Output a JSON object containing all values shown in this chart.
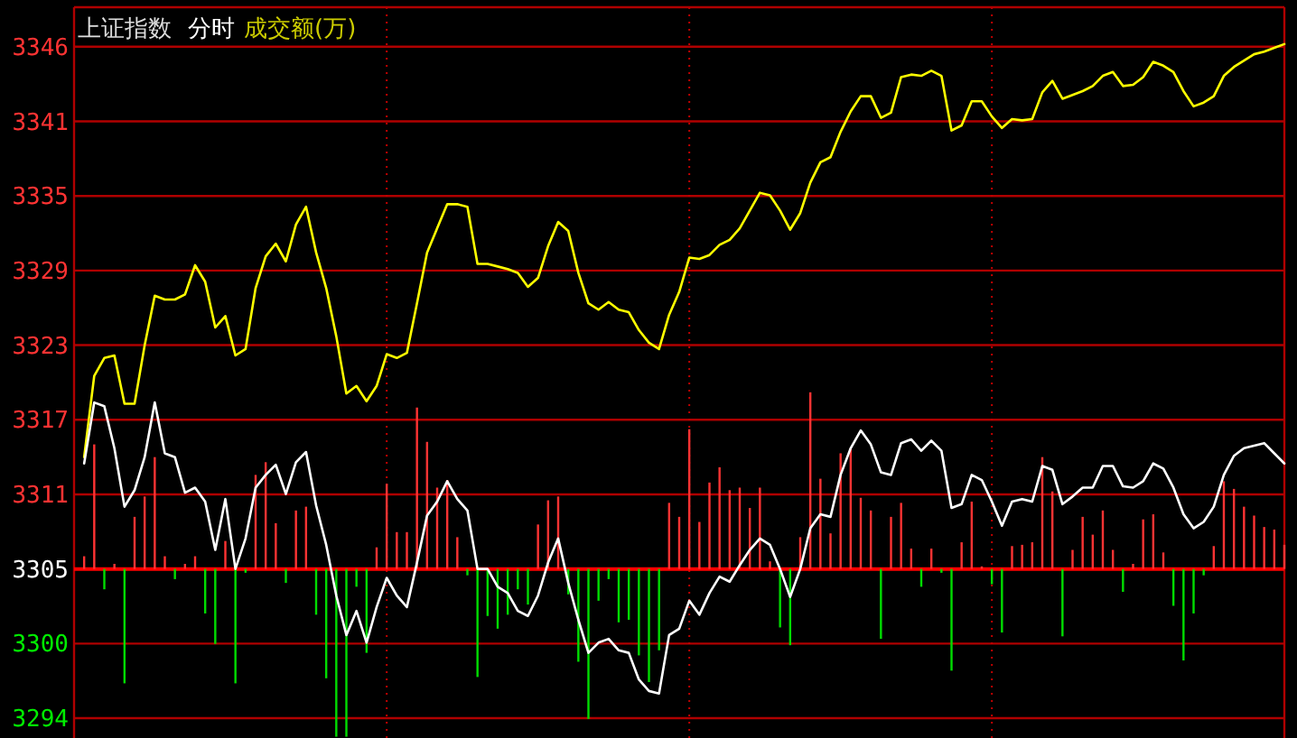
{
  "chart_data": {
    "type": "line",
    "title": "上证指数",
    "subtitle": "分时",
    "annotations": [
      "成交额(万)"
    ],
    "categories": [
      null,
      null,
      null,
      null,
      null,
      null,
      null,
      null,
      null,
      null,
      null,
      null,
      null,
      null,
      null,
      null,
      null,
      null,
      null,
      null,
      null,
      null,
      null,
      null,
      null,
      null,
      null,
      null,
      null,
      null,
      null,
      null,
      null,
      null,
      null,
      null,
      null,
      null,
      null,
      null,
      null,
      null,
      null,
      null,
      null,
      null,
      null,
      null,
      null,
      null,
      null,
      null,
      null,
      null,
      null,
      null,
      null,
      null,
      null,
      null,
      null,
      null,
      null,
      null,
      null,
      null,
      null,
      null,
      null,
      null,
      null,
      null,
      null,
      null,
      null,
      null,
      null,
      null,
      null,
      null,
      null,
      null,
      null,
      null,
      null,
      null,
      null,
      null,
      null,
      null,
      null,
      null,
      null,
      null,
      null,
      null,
      null,
      null,
      null,
      null,
      null,
      null,
      null,
      null,
      null,
      null,
      null,
      null,
      null,
      null,
      null,
      null,
      null,
      null,
      null,
      null,
      null,
      null,
      null,
      null
    ],
    "series": [
      {
        "type": "bar",
        "values": [
          1.0,
          9.8,
          -1.6,
          0.4,
          -9.0,
          4.1,
          5.7,
          8.8,
          1.0,
          -0.8,
          0.4,
          1.0,
          -3.5,
          -5.9,
          2.2,
          -9.0,
          -0.3,
          7.4,
          8.4,
          3.6,
          -1.1,
          4.6,
          4.9,
          -3.6,
          -8.6,
          -13.2,
          -13.2,
          -1.4,
          -6.6,
          1.7,
          6.7,
          2.9,
          2.9,
          12.7,
          10.0,
          6.4,
          7.0,
          2.5,
          -0.5,
          -8.5,
          -3.7,
          -4.7,
          -3.6,
          -1.6,
          -2.8,
          3.5,
          5.4,
          5.7,
          -2.0,
          -7.3,
          -11.8,
          -2.5,
          -0.8,
          -4.2,
          -4.0,
          -6.8,
          -8.9,
          -6.4,
          5.2,
          4.1,
          11.0,
          3.7,
          6.8,
          8.0,
          6.2,
          6.4,
          4.8,
          6.4,
          0.6,
          -4.6,
          -6.0,
          2.5,
          13.9,
          7.1,
          2.8,
          9.1,
          9.5,
          5.6,
          4.6,
          -5.5,
          4.1,
          5.2,
          1.6,
          -1.4,
          1.6,
          -0.3,
          -8.0,
          2.1,
          5.3,
          0.2,
          -1.2,
          -5.0,
          1.8,
          1.9,
          2.1,
          8.8,
          6.1,
          -5.3,
          1.5,
          4.1,
          2.7,
          4.6,
          1.5,
          -1.8,
          0.4,
          3.9,
          4.3,
          1.3,
          -2.9,
          -7.2,
          -3.5,
          -0.5,
          1.8,
          6.9,
          6.3,
          4.9,
          4.2,
          3.3,
          3.1,
          1.9
        ],
        "base": [
          3305.4,
          3305.4,
          3305.4,
          3305.4,
          3305.4,
          3305.4,
          3305.4,
          3305.4,
          3305.4,
          3305.4,
          3305.4,
          3305.4,
          3305.4,
          3305.4,
          3305.4,
          3305.4,
          3305.4,
          3305.4,
          3305.4,
          3305.4,
          3305.4,
          3305.4,
          3305.4,
          3305.4,
          3305.4,
          3305.4,
          3305.4,
          3305.4,
          3305.4,
          3305.4,
          3305.4,
          3305.4,
          3305.4,
          3305.4,
          3305.4,
          3305.4,
          3305.4,
          3305.4,
          3305.4,
          3305.4,
          3305.4,
          3305.4,
          3305.4,
          3305.4,
          3305.4,
          3305.4,
          3305.4,
          3305.4,
          3305.4,
          3305.4,
          3305.4,
          3305.4,
          3305.4,
          3305.4,
          3305.4,
          3305.4,
          3305.4,
          3305.4,
          3305.4,
          3305.4,
          3305.4,
          3305.4,
          3305.4,
          3305.4,
          3305.4,
          3305.4,
          3305.4,
          3305.4,
          3305.4,
          3305.4,
          3305.4,
          3305.4,
          3305.4,
          3305.4,
          3305.4,
          3305.4,
          3305.4,
          3305.4,
          3305.4,
          3305.4,
          3305.4,
          3305.4,
          3305.4,
          3305.4,
          3305.4,
          3305.4,
          3305.4,
          3305.4,
          3305.4,
          3305.4,
          3305.4,
          3305.4,
          3305.4,
          3305.4,
          3305.4,
          3305.4,
          3305.4,
          3305.4,
          3305.4,
          3305.4,
          3305.4,
          3305.4,
          3305.4,
          3305.4,
          3305.4,
          3305.4,
          3305.4,
          3305.4,
          3305.4,
          3305.4,
          3305.4,
          3305.4,
          3305.4,
          3305.4,
          3305.4,
          3305.4,
          3305.4,
          3305.4,
          3305.4,
          3305.4
        ],
        "colors": [
          "#ff3333",
          "#ff3333",
          "#00dd00",
          "#ff3333",
          "#00dd00",
          "#ff3333",
          "#ff3333",
          "#ff3333",
          "#ff3333",
          "#00dd00",
          "#ff3333",
          "#ff3333",
          "#00dd00",
          "#00dd00",
          "#ff3333",
          "#00dd00",
          "#00dd00",
          "#ff3333",
          "#ff3333",
          "#ff3333",
          "#00dd00",
          "#ff3333",
          "#ff3333",
          "#00dd00",
          "#00dd00",
          "#00dd00",
          "#00dd00",
          "#00dd00",
          "#00dd00",
          "#ff3333",
          "#ff3333",
          "#ff3333",
          "#ff3333",
          "#ff3333",
          "#ff3333",
          "#ff3333",
          "#ff3333",
          "#ff3333",
          "#00dd00",
          "#00dd00",
          "#00dd00",
          "#00dd00",
          "#00dd00",
          "#00dd00",
          "#00dd00",
          "#ff3333",
          "#ff3333",
          "#ff3333",
          "#00dd00",
          "#00dd00",
          "#00dd00",
          "#00dd00",
          "#00dd00",
          "#00dd00",
          "#00dd00",
          "#00dd00",
          "#00dd00",
          "#00dd00",
          "#ff3333",
          "#ff3333",
          "#ff3333",
          "#ff3333",
          "#ff3333",
          "#ff3333",
          "#ff3333",
          "#ff3333",
          "#ff3333",
          "#ff3333",
          "#ff3333",
          "#00dd00",
          "#00dd00",
          "#ff3333",
          "#ff3333",
          "#ff3333",
          "#ff3333",
          "#ff3333",
          "#ff3333",
          "#ff3333",
          "#ff3333",
          "#00dd00",
          "#ff3333",
          "#ff3333",
          "#ff3333",
          "#00dd00",
          "#ff3333",
          "#00dd00",
          "#00dd00",
          "#ff3333",
          "#ff3333",
          "#ff3333",
          "#00dd00",
          "#00dd00",
          "#ff3333",
          "#ff3333",
          "#ff3333",
          "#ff3333",
          "#ff3333",
          "#00dd00",
          "#ff3333",
          "#ff3333",
          "#ff3333",
          "#ff3333",
          "#ff3333",
          "#00dd00",
          "#ff3333",
          "#ff3333",
          "#ff3333",
          "#ff3333",
          "#00dd00",
          "#00dd00",
          "#00dd00",
          "#00dd00",
          "#ff3333",
          "#ff3333",
          "#ff3333",
          "#ff3333",
          "#ff3333",
          "#ff3333",
          "#ff3333",
          "#ff3333"
        ]
      },
      {
        "color": "#ffff00",
        "values": [
          3314.2,
          3320.6,
          3322.0,
          3322.2,
          3318.4,
          3318.4,
          3323.0,
          3326.9,
          3326.6,
          3326.6,
          3327.0,
          3329.3,
          3328.0,
          3324.4,
          3325.3,
          3322.2,
          3322.7,
          3327.5,
          3330.0,
          3331.0,
          3329.6,
          3332.5,
          3333.9,
          3330.3,
          3327.5,
          3323.7,
          3319.2,
          3319.8,
          3318.6,
          3319.8,
          3322.3,
          3322.0,
          3322.4,
          3326.3,
          3330.3,
          3332.2,
          3334.1,
          3334.1,
          3333.9,
          3329.4,
          3329.4,
          3329.2,
          3329.0,
          3328.7,
          3327.6,
          3328.3,
          3330.8,
          3332.7,
          3332.0,
          3328.7,
          3326.3,
          3325.8,
          3326.4,
          3325.8,
          3325.6,
          3324.2,
          3323.2,
          3322.7,
          3325.4,
          3327.2,
          3329.9,
          3329.8,
          3330.1,
          3330.9,
          3331.3,
          3332.2,
          3333.6,
          3335.0,
          3334.8,
          3333.6,
          3332.1,
          3333.4,
          3335.8,
          3337.4,
          3337.8,
          3339.8,
          3341.4,
          3342.6,
          3342.6,
          3340.9,
          3341.3,
          3344.1,
          3344.3,
          3344.2,
          3344.6,
          3344.2,
          3339.9,
          3340.3,
          3342.2,
          3342.2,
          3341.0,
          3340.1,
          3340.8,
          3340.7,
          3340.8,
          3342.9,
          3343.8,
          3342.4,
          3342.7,
          3343.0,
          3343.4,
          3344.2,
          3344.5,
          3343.4,
          3343.5,
          3344.1,
          3345.3,
          3345.0,
          3344.5,
          3343.0,
          3341.8,
          3342.1,
          3342.6,
          3344.2,
          3344.9,
          3345.4,
          3345.9,
          3346.1,
          3346.4,
          3346.7
        ]
      },
      {
        "color": "#ffffff",
        "values": [
          3313.7,
          3318.5,
          3318.2,
          3314.9,
          3310.3,
          3311.6,
          3314.2,
          3318.5,
          3314.5,
          3314.2,
          3311.4,
          3311.8,
          3310.7,
          3306.9,
          3310.9,
          3305.4,
          3307.8,
          3311.8,
          3312.8,
          3313.6,
          3311.3,
          3313.8,
          3314.6,
          3310.4,
          3307.3,
          3303.3,
          3300.2,
          3302.1,
          3299.6,
          3302.4,
          3304.7,
          3303.3,
          3302.4,
          3305.9,
          3309.6,
          3310.7,
          3312.3,
          3310.9,
          3310.0,
          3305.4,
          3305.4,
          3304.0,
          3303.5,
          3302.1,
          3301.7,
          3303.3,
          3305.9,
          3307.8,
          3304.3,
          3301.4,
          3298.8,
          3299.6,
          3299.9,
          3299.0,
          3298.8,
          3296.7,
          3295.8,
          3295.6,
          3300.2,
          3300.7,
          3302.9,
          3301.8,
          3303.5,
          3304.8,
          3304.4,
          3305.7,
          3306.9,
          3307.8,
          3307.3,
          3305.4,
          3303.2,
          3305.4,
          3308.6,
          3309.7,
          3309.5,
          3312.8,
          3314.9,
          3316.3,
          3315.2,
          3313.0,
          3312.8,
          3315.3,
          3315.6,
          3314.7,
          3315.5,
          3314.7,
          3310.2,
          3310.5,
          3312.8,
          3312.4,
          3310.7,
          3308.8,
          3310.7,
          3310.9,
          3310.7,
          3313.5,
          3313.2,
          3310.5,
          3311.1,
          3311.8,
          3311.8,
          3313.5,
          3313.5,
          3311.9,
          3311.8,
          3312.3,
          3313.7,
          3313.3,
          3311.8,
          3309.7,
          3308.6,
          3309.1,
          3310.3,
          3312.8,
          3314.3,
          3314.9,
          3315.1,
          3315.3,
          3314.5,
          3313.7
        ]
      }
    ],
    "ylim": [
      3292.1,
      3349.6
    ],
    "yticks": [
      {
        "value": 3293.66,
        "label": "3294"
      },
      {
        "value": 3299.53,
        "label": "3300"
      },
      {
        "value": 3305.4,
        "label": "3305"
      },
      {
        "value": 3311.27,
        "label": "3311"
      },
      {
        "value": 3317.14,
        "label": "3317"
      },
      {
        "value": 3323.01,
        "label": "3323"
      },
      {
        "value": 3328.88,
        "label": "3329"
      },
      {
        "value": 3334.75,
        "label": "3335"
      },
      {
        "value": 3340.62,
        "label": "3341"
      },
      {
        "value": 3346.49,
        "label": "3346"
      }
    ],
    "grid": true,
    "tick_labels": "y",
    "ref_lines": [
      {
        "axis": "y",
        "value": 3305.4,
        "color": "#ff0000",
        "line_style": "solid"
      }
    ]
  }
}
